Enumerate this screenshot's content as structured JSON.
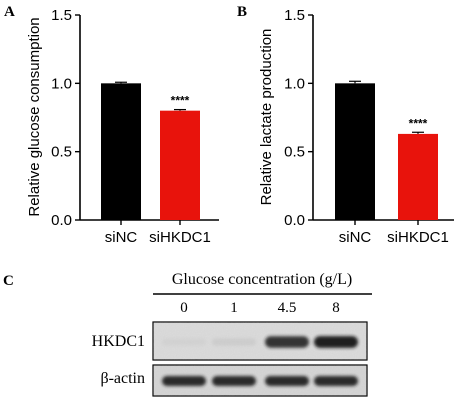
{
  "panels": {
    "a": {
      "letter": "A"
    },
    "b": {
      "letter": "B"
    },
    "c": {
      "letter": "C"
    }
  },
  "chart_data": [
    {
      "type": "bar",
      "panel": "A",
      "title": "",
      "xlabel": "",
      "ylabel": "Relative glucose consumption",
      "categories": [
        "siNC",
        "siHKDC1"
      ],
      "values": [
        1.0,
        0.8
      ],
      "error": [
        0.008,
        0.008
      ],
      "bar_colors": [
        "#000000",
        "#e8130c"
      ],
      "ylim": [
        0,
        1.5
      ],
      "yticks": [
        0.0,
        0.5,
        1.0,
        1.5
      ],
      "ytick_labels": [
        "0.0",
        "0.5",
        "1.0",
        "1.5"
      ],
      "annotations": [
        {
          "category": "siHKDC1",
          "text": "****"
        }
      ],
      "grid": false
    },
    {
      "type": "bar",
      "panel": "B",
      "title": "",
      "xlabel": "",
      "ylabel": "Relative lactate production",
      "categories": [
        "siNC",
        "siHKDC1"
      ],
      "values": [
        1.0,
        0.63
      ],
      "error": [
        0.015,
        0.012
      ],
      "bar_colors": [
        "#000000",
        "#e8130c"
      ],
      "ylim": [
        0,
        1.5
      ],
      "yticks": [
        0.0,
        0.5,
        1.0,
        1.5
      ],
      "ytick_labels": [
        "0.0",
        "0.5",
        "1.0",
        "1.5"
      ],
      "annotations": [
        {
          "category": "siHKDC1",
          "text": "****"
        }
      ],
      "grid": false
    }
  ],
  "blot": {
    "header": "Glucose concentration (g/L)",
    "lanes": [
      "0",
      "1",
      "4.5",
      "8"
    ],
    "rows": [
      {
        "label": "HKDC1",
        "intensities": [
          0.15,
          0.22,
          0.9,
          0.95
        ]
      },
      {
        "label": "β-actin",
        "intensities": [
          0.92,
          0.92,
          0.92,
          0.92
        ]
      }
    ]
  }
}
